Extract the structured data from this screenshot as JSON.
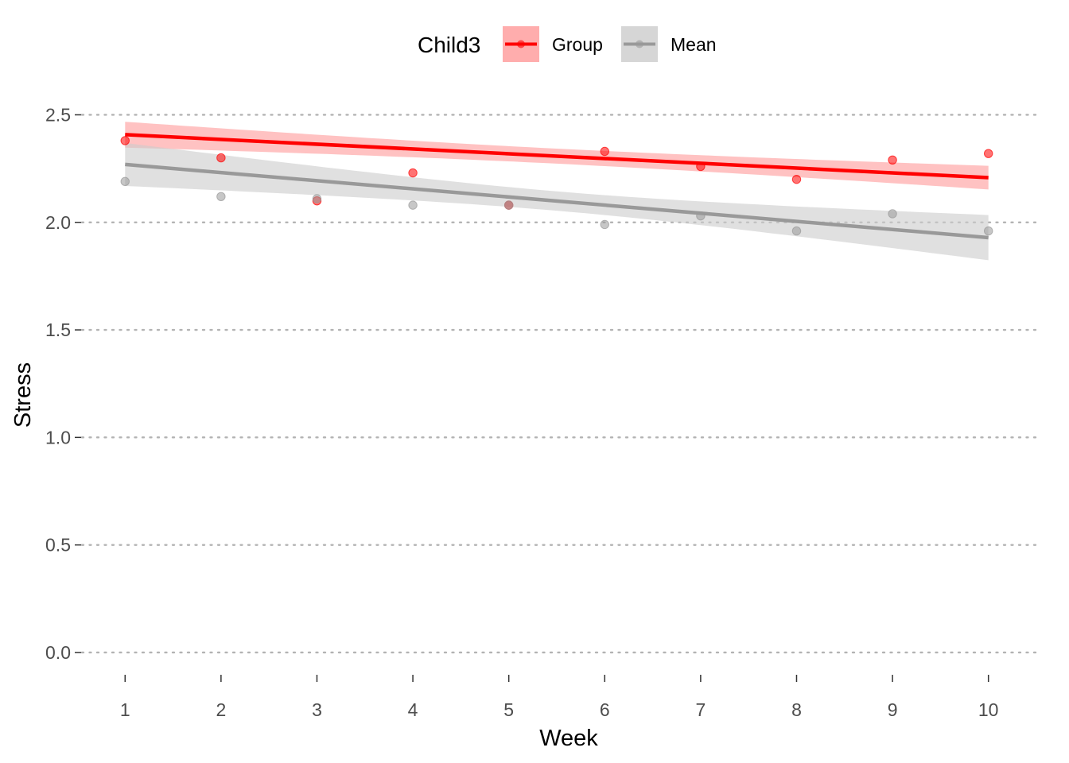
{
  "chart_data": {
    "type": "scatter",
    "xlabel": "Week",
    "ylabel": "Stress",
    "x": [
      1,
      2,
      3,
      4,
      5,
      6,
      7,
      8,
      9,
      10
    ],
    "x_ticks": [
      "1",
      "2",
      "3",
      "4",
      "5",
      "6",
      "7",
      "8",
      "9",
      "10"
    ],
    "y_ticks": [
      "0.0",
      "0.5",
      "1.0",
      "1.5",
      "2.0",
      "2.5"
    ],
    "xlim": [
      0.55,
      10.5
    ],
    "ylim": [
      -0.1,
      2.62
    ],
    "grid": "horizontal dotted",
    "legend": {
      "title": "Child3",
      "position": "top"
    },
    "series": [
      {
        "name": "Group",
        "color": "#ff0000",
        "band_color": "#ff9999",
        "values": [
          2.38,
          2.3,
          2.1,
          2.23,
          2.08,
          2.33,
          2.26,
          2.2,
          2.29,
          2.32
        ],
        "fit": {
          "intercept": 2.43,
          "slope": -0.0222
        },
        "ci_halfwidth_start": 0.06,
        "ci_halfwidth_mid": 0.035,
        "ci_halfwidth_end": 0.055
      },
      {
        "name": "Mean",
        "color": "#999999",
        "band_color": "#cccccc",
        "values": [
          2.19,
          2.12,
          2.11,
          2.08,
          2.08,
          1.99,
          2.03,
          1.96,
          2.04,
          1.96
        ],
        "fit": {
          "intercept": 2.307,
          "slope": -0.0378
        },
        "ci_halfwidth_start": 0.1,
        "ci_halfwidth_mid": 0.045,
        "ci_halfwidth_end": 0.105
      }
    ]
  }
}
